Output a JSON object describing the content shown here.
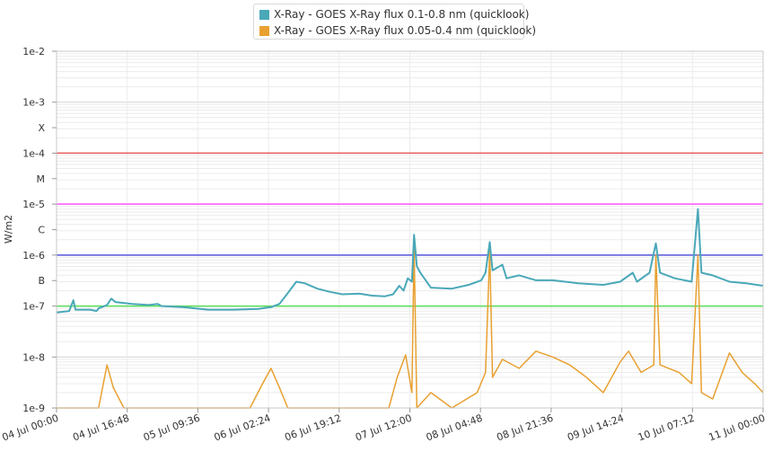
{
  "chart_data": {
    "type": "line",
    "title": "",
    "xlabel": "",
    "ylabel": "W/m2",
    "y_scale": "log",
    "ylim": [
      1e-09,
      0.01
    ],
    "xlim": [
      "04 Jul 00:00",
      "11 Jul 00:00"
    ],
    "x_tick_labels": [
      "04 Jul 00:00",
      "04 Jul 16:48",
      "05 Jul 09:36",
      "06 Jul 02:24",
      "06 Jul 19:12",
      "07 Jul 12:00",
      "08 Jul 04:48",
      "08 Jul 21:36",
      "09 Jul 14:24",
      "10 Jul 07:12",
      "11 Jul 00:00"
    ],
    "y_tick_labels": [
      {
        "value": 0.01,
        "label": "1e-2"
      },
      {
        "value": 0.001,
        "label": "1e-3"
      },
      {
        "value": 0.000316,
        "label": "X"
      },
      {
        "value": 0.0001,
        "label": "1e-4"
      },
      {
        "value": 3.16e-05,
        "label": "M"
      },
      {
        "value": 1e-05,
        "label": "1e-5"
      },
      {
        "value": 3.16e-06,
        "label": "C"
      },
      {
        "value": 1e-06,
        "label": "1e-6"
      },
      {
        "value": 3.16e-07,
        "label": "B"
      },
      {
        "value": 1e-07,
        "label": "1e-7"
      },
      {
        "value": 1e-08,
        "label": "1e-8"
      },
      {
        "value": 1e-09,
        "label": "1e-9"
      }
    ],
    "threshold_lines": [
      {
        "value": 0.0001,
        "color": "#e85a5a"
      },
      {
        "value": 1e-05,
        "color": "#ff55ff"
      },
      {
        "value": 1e-06,
        "color": "#5555dd"
      },
      {
        "value": 1e-07,
        "color": "#55dd55"
      }
    ],
    "grid": true,
    "legend_position": "top-center",
    "series": [
      {
        "name": "X-Ray - GOES X-Ray flux 0.1-0.8 nm (quicklook)",
        "color": "#4aa8b8",
        "points": [
          [
            "04 Jul 00:00",
            7.5e-08
          ],
          [
            "04 Jul 03:00",
            8e-08
          ],
          [
            "04 Jul 04:00",
            1.3e-07
          ],
          [
            "04 Jul 04:30",
            8.5e-08
          ],
          [
            "04 Jul 08:00",
            8.5e-08
          ],
          [
            "04 Jul 09:30",
            8e-08
          ],
          [
            "04 Jul 10:00",
            9e-08
          ],
          [
            "04 Jul 12:00",
            1.05e-07
          ],
          [
            "04 Jul 13:00",
            1.4e-07
          ],
          [
            "04 Jul 14:00",
            1.2e-07
          ],
          [
            "04 Jul 18:00",
            1.1e-07
          ],
          [
            "04 Jul 22:00",
            1.05e-07
          ],
          [
            "05 Jul 00:00",
            1.1e-07
          ],
          [
            "05 Jul 01:00",
            1e-07
          ],
          [
            "05 Jul 06:00",
            9.5e-08
          ],
          [
            "05 Jul 12:00",
            8.5e-08
          ],
          [
            "05 Jul 18:00",
            8.5e-08
          ],
          [
            "06 Jul 00:00",
            8.8e-08
          ],
          [
            "06 Jul 03:00",
            9.5e-08
          ],
          [
            "06 Jul 05:00",
            1.1e-07
          ],
          [
            "06 Jul 07:00",
            1.8e-07
          ],
          [
            "06 Jul 09:00",
            3e-07
          ],
          [
            "06 Jul 11:00",
            2.8e-07
          ],
          [
            "06 Jul 14:00",
            2.2e-07
          ],
          [
            "06 Jul 17:00",
            1.9e-07
          ],
          [
            "06 Jul 20:00",
            1.7e-07
          ],
          [
            "07 Jul 00:00",
            1.75e-07
          ],
          [
            "07 Jul 03:00",
            1.6e-07
          ],
          [
            "07 Jul 06:00",
            1.55e-07
          ],
          [
            "07 Jul 08:00",
            1.7e-07
          ],
          [
            "07 Jul 09:30",
            2.5e-07
          ],
          [
            "07 Jul 10:30",
            2e-07
          ],
          [
            "07 Jul 11:30",
            3.5e-07
          ],
          [
            "07 Jul 12:30",
            3e-07
          ],
          [
            "07 Jul 13:00",
            2.5e-06
          ],
          [
            "07 Jul 13:40",
            6e-07
          ],
          [
            "07 Jul 14:30",
            4.5e-07
          ],
          [
            "07 Jul 17:00",
            2.3e-07
          ],
          [
            "07 Jul 22:00",
            2.2e-07
          ],
          [
            "08 Jul 02:00",
            2.6e-07
          ],
          [
            "08 Jul 05:00",
            3.2e-07
          ],
          [
            "08 Jul 06:00",
            4.5e-07
          ],
          [
            "08 Jul 07:00",
            1.8e-06
          ],
          [
            "08 Jul 07:40",
            5e-07
          ],
          [
            "08 Jul 10:00",
            6.5e-07
          ],
          [
            "08 Jul 11:00",
            3.5e-07
          ],
          [
            "08 Jul 14:00",
            4e-07
          ],
          [
            "08 Jul 18:00",
            3.2e-07
          ],
          [
            "08 Jul 22:00",
            3.2e-07
          ],
          [
            "09 Jul 04:00",
            2.8e-07
          ],
          [
            "09 Jul 10:00",
            2.6e-07
          ],
          [
            "09 Jul 14:00",
            3e-07
          ],
          [
            "09 Jul 17:00",
            4.5e-07
          ],
          [
            "09 Jul 18:00",
            3e-07
          ],
          [
            "09 Jul 21:00",
            4.5e-07
          ],
          [
            "09 Jul 22:30",
            1.7e-06
          ],
          [
            "09 Jul 23:30",
            4.5e-07
          ],
          [
            "10 Jul 03:00",
            3.5e-07
          ],
          [
            "10 Jul 07:00",
            3e-07
          ],
          [
            "10 Jul 08:30",
            8e-06
          ],
          [
            "10 Jul 09:20",
            4.5e-07
          ],
          [
            "10 Jul 12:00",
            4e-07
          ],
          [
            "10 Jul 16:00",
            3e-07
          ],
          [
            "10 Jul 20:00",
            2.8e-07
          ],
          [
            "11 Jul 00:00",
            2.5e-07
          ]
        ]
      },
      {
        "name": "X-Ray - GOES X-Ray flux 0.05-0.4 nm (quicklook)",
        "color": "#e8a030",
        "points": [
          [
            "04 Jul 00:00",
            1e-09
          ],
          [
            "04 Jul 10:00",
            1e-09
          ],
          [
            "04 Jul 12:00",
            7e-09
          ],
          [
            "04 Jul 13:30",
            2.5e-09
          ],
          [
            "04 Jul 16:00",
            1e-09
          ],
          [
            "05 Jul 22:00",
            1e-09
          ],
          [
            "06 Jul 01:00",
            3e-09
          ],
          [
            "06 Jul 03:00",
            6e-09
          ],
          [
            "06 Jul 05:00",
            2.5e-09
          ],
          [
            "06 Jul 07:00",
            1e-09
          ],
          [
            "07 Jul 07:00",
            1e-09
          ],
          [
            "07 Jul 09:00",
            4e-09
          ],
          [
            "07 Jul 11:00",
            1.1e-08
          ],
          [
            "07 Jul 12:30",
            2e-09
          ],
          [
            "07 Jul 13:00",
            1.5e-06
          ],
          [
            "07 Jul 13:40",
            1e-09
          ],
          [
            "07 Jul 17:00",
            2e-09
          ],
          [
            "07 Jul 22:00",
            1e-09
          ],
          [
            "08 Jul 04:00",
            2e-09
          ],
          [
            "08 Jul 06:00",
            5e-09
          ],
          [
            "08 Jul 07:00",
            1.2e-06
          ],
          [
            "08 Jul 07:40",
            4e-09
          ],
          [
            "08 Jul 10:00",
            9e-09
          ],
          [
            "08 Jul 14:00",
            6e-09
          ],
          [
            "08 Jul 18:00",
            1.3e-08
          ],
          [
            "08 Jul 22:00",
            1e-08
          ],
          [
            "09 Jul 02:00",
            7e-09
          ],
          [
            "09 Jul 06:00",
            4e-09
          ],
          [
            "09 Jul 10:00",
            2e-09
          ],
          [
            "09 Jul 14:00",
            8e-09
          ],
          [
            "09 Jul 16:00",
            1.3e-08
          ],
          [
            "09 Jul 19:00",
            5e-09
          ],
          [
            "09 Jul 22:00",
            7e-09
          ],
          [
            "09 Jul 22:30",
            1e-06
          ],
          [
            "09 Jul 23:30",
            7e-09
          ],
          [
            "10 Jul 04:00",
            5e-09
          ],
          [
            "10 Jul 07:00",
            3e-09
          ],
          [
            "10 Jul 08:30",
            1e-06
          ],
          [
            "10 Jul 09:20",
            2e-09
          ],
          [
            "10 Jul 12:00",
            1.5e-09
          ],
          [
            "10 Jul 16:00",
            1.2e-08
          ],
          [
            "10 Jul 19:00",
            5e-09
          ],
          [
            "10 Jul 22:00",
            3e-09
          ],
          [
            "11 Jul 00:00",
            2e-09
          ]
        ]
      }
    ]
  }
}
